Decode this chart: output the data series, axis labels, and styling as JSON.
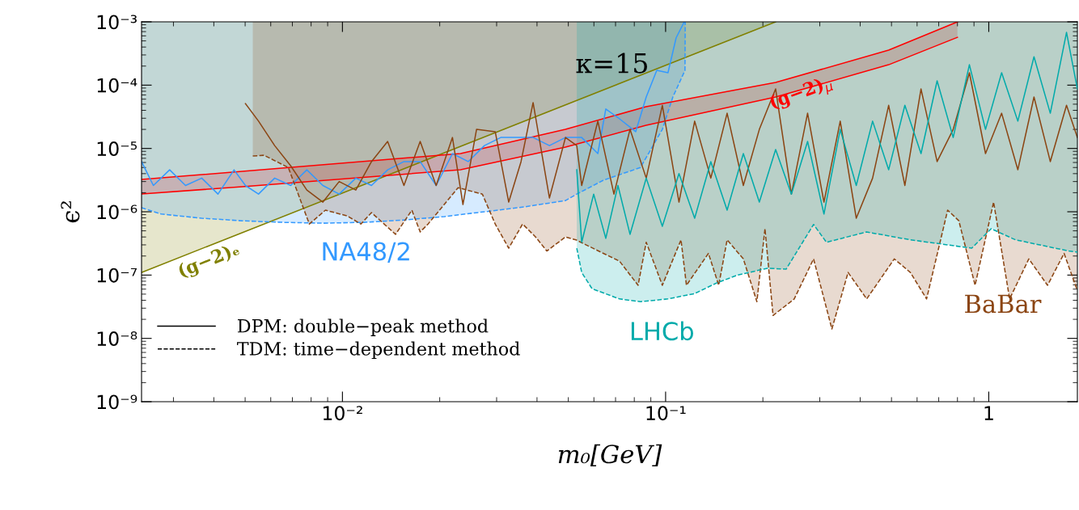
{
  "chart_data": {
    "type": "line",
    "xlabel": "m₀[GeV]",
    "ylabel": "ϵ²",
    "log": "xy",
    "grid": false,
    "legend": "bottom left",
    "xlim": [
      0.00239,
      1.88
    ],
    "ylim": [
      1e-09,
      0.001
    ],
    "xticks": [
      {
        "value": 0.01,
        "label": "10⁻²"
      },
      {
        "value": 0.1,
        "label": "10⁻¹"
      },
      1
    ],
    "yticks": [
      {
        "value": 1e-09,
        "label": "10⁻⁹"
      },
      {
        "value": 1e-08,
        "label": "10⁻⁸"
      },
      {
        "value": 1e-07,
        "label": "10⁻⁷"
      },
      {
        "value": 1e-06,
        "label": "10⁻⁶"
      },
      {
        "value": 1e-05,
        "label": "10⁻⁵"
      },
      {
        "value": 0.0001,
        "label": "10⁻⁴"
      },
      {
        "value": 0.001,
        "label": "10⁻³"
      }
    ],
    "annotations": [
      "κ=15",
      "NA48/2",
      "LHCb",
      "BaBar",
      "(g−2)$_{μ}$",
      "(g−2)ₑ"
    ],
    "series": [
      {
        "color": "#808000",
        "x": [
          0.00239,
          0.219
        ],
        "values": [
          1.1e-07,
          0.001
        ],
        "lower": [
          1.1e-07,
          0.001
        ],
        "upper": [
          0.001,
          0.001
        ]
      },
      {
        "color": "#ff0000",
        "x": [
          0.00239,
          0.0049,
          0.0232,
          0.049,
          0.087,
          0.219,
          0.49,
          0.8
        ],
        "values": [
          3.24e-06,
          4.35e-06,
          8.3e-06,
          2e-05,
          4.57e-05,
          0.00011,
          0.000357,
          0.001
        ],
        "lower": [
          1.91e-06,
          2.49e-06,
          4.6e-06,
          1.05e-05,
          2.32e-05,
          6.5e-05,
          0.00021,
          0.00057
        ],
        "upper": [
          3.24e-06,
          4.35e-06,
          8.3e-06,
          2e-05,
          4.57e-05,
          0.00011,
          0.000357,
          0.001
        ]
      },
      {
        "color": "#ff0000",
        "x": [
          0.00239,
          0.0049,
          0.0232,
          0.049,
          0.087,
          0.219,
          0.49,
          0.8
        ],
        "values": [
          1.91e-06,
          2.49e-06,
          4.6e-06,
          1.05e-05,
          2.32e-05,
          6.5e-05,
          0.00021,
          0.00057
        ]
      },
      {
        "color": "#3399ff",
        "x": [
          0.00239,
          0.0026,
          0.00292,
          0.00327,
          0.00367,
          0.00412,
          0.00462,
          0.00501,
          0.0055,
          0.00617,
          0.00692,
          0.00776,
          0.0087,
          0.00977,
          0.011,
          0.0123,
          0.0138,
          0.0155,
          0.0174,
          0.0195,
          0.0219,
          0.0245,
          0.0275,
          0.0309,
          0.0347,
          0.0389,
          0.0437,
          0.049,
          0.055,
          0.0617,
          0.0653,
          0.072,
          0.0808,
          0.0871,
          0.0939,
          0.1017,
          0.1078,
          0.1142
        ],
        "values": [
          6.2e-06,
          2.6e-06,
          4.6e-06,
          2.6e-06,
          3.4e-06,
          1.9e-06,
          4.6e-06,
          2.6e-06,
          1.9e-06,
          3.4e-06,
          2.6e-06,
          4.6e-06,
          2.6e-06,
          1.9e-06,
          3.4e-06,
          2.6e-06,
          4.6e-06,
          6.2e-06,
          6.2e-06,
          2.6e-06,
          8.3e-06,
          6.2e-06,
          1.11e-05,
          1.49e-05,
          1.49e-05,
          1.49e-05,
          1.11e-05,
          1.49e-05,
          1.49e-05,
          8.3e-06,
          4.2e-05,
          2.94e-05,
          1.84e-05,
          6.5e-05,
          0.000171,
          0.000157,
          0.00056,
          0.001
        ]
      },
      {
        "color": "#3399ff",
        "line_style": "dashed",
        "x": [
          0.00239,
          0.00275,
          0.00367,
          0.0049,
          0.00653,
          0.0087,
          0.0116,
          0.0155,
          0.0207,
          0.0275,
          0.0367,
          0.049,
          0.0531,
          0.0642,
          0.0836,
          0.0977,
          0.1053,
          0.1148,
          0.115
        ],
        "values": [
          1.16e-06,
          9.2e-07,
          7.9e-07,
          7.2e-07,
          6.8e-07,
          6.6e-07,
          6.8e-07,
          7.4e-07,
          8.4e-07,
          1e-06,
          1.2e-06,
          1.5e-06,
          1.9e-06,
          3.15e-06,
          5e-06,
          2e-05,
          6.5e-05,
          0.000171,
          0.001
        ],
        "lower": [
          1.16e-06,
          9.2e-07,
          7.9e-07,
          7.2e-07,
          6.8e-07,
          6.6e-07,
          6.8e-07,
          7.4e-07,
          8.4e-07,
          1e-06,
          1.2e-06,
          1.5e-06,
          1.9e-06,
          3.15e-06,
          5e-06,
          2e-05,
          6.5e-05,
          0.000171,
          0.001
        ],
        "upper": [
          0.001,
          0.001,
          0.001,
          0.001,
          0.001,
          0.001,
          0.001,
          0.001,
          0.001,
          0.001,
          0.001,
          0.001,
          0.001,
          0.001,
          0.001,
          0.001,
          0.001,
          0.001,
          0.001
        ]
      },
      {
        "color": "#8b4513",
        "x": [
          0.00501,
          0.0055,
          0.00617,
          0.00692,
          0.00776,
          0.0087,
          0.00977,
          0.011,
          0.0123,
          0.0138,
          0.0155,
          0.0174,
          0.0195,
          0.0219,
          0.0236,
          0.026,
          0.0297,
          0.0327,
          0.0357,
          0.0389,
          0.0437,
          0.049,
          0.0531,
          0.055,
          0.0617,
          0.0692,
          0.0776,
          0.0871,
          0.0977,
          0.11,
          0.123,
          0.138,
          0.155,
          0.174,
          0.195,
          0.219,
          0.245,
          0.275,
          0.309,
          0.347,
          0.389,
          0.437,
          0.49,
          0.55,
          0.617,
          0.692,
          0.776,
          0.871,
          0.977,
          1.096,
          1.23,
          1.38,
          1.55,
          1.74,
          1.88
        ],
        "values": [
          5.1e-05,
          2.7e-05,
          1.11e-05,
          5.3e-06,
          2.2e-06,
          1.42e-06,
          3e-06,
          2.2e-06,
          6.2e-06,
          1.29e-05,
          2.6e-06,
          1.29e-05,
          2.6e-06,
          1.49e-05,
          1.3e-06,
          2e-05,
          1.84e-05,
          1.42e-06,
          6.2e-06,
          5.3e-05,
          1.65e-06,
          1.49e-05,
          1.11e-05,
          2.6e-06,
          2.7e-05,
          1.9e-06,
          2e-05,
          3.4e-06,
          4.8e-05,
          1.42e-06,
          2.7e-05,
          3.4e-06,
          3.6e-05,
          2.6e-06,
          2e-05,
          8.7e-05,
          1.9e-06,
          3.6e-05,
          1.42e-06,
          2.7e-05,
          7.9e-07,
          3.4e-06,
          4.8e-05,
          2.6e-06,
          8.7e-05,
          6.2e-06,
          2e-05,
          0.000157,
          8.3e-06,
          3.6e-05,
          4.6e-06,
          6.5e-05,
          6.2e-06,
          4.8e-05,
          1.49e-05
        ]
      },
      {
        "color": "#8b4513",
        "line_style": "dashed",
        "x": [
          0.00528,
          0.00572,
          0.0068,
          0.0079,
          0.00886,
          0.01035,
          0.0114,
          0.0123,
          0.0146,
          0.0164,
          0.0174,
          0.0184,
          0.0228,
          0.0271,
          0.0297,
          0.0327,
          0.0361,
          0.0396,
          0.0429,
          0.049,
          0.0528,
          0.0642,
          0.072,
          0.0822,
          0.0871,
          0.0977,
          0.1116,
          0.116,
          0.1357,
          0.146,
          0.155,
          0.174,
          0.1916,
          0.203,
          0.215,
          0.25,
          0.287,
          0.327,
          0.367,
          0.419,
          0.51,
          0.572,
          0.642,
          0.746,
          0.808,
          0.907,
          1.035,
          1.16,
          1.33,
          1.52,
          1.71,
          1.87
        ],
        "values": [
          7.6e-06,
          7.8e-06,
          5e-06,
          6.4e-07,
          1.06e-06,
          8.6e-07,
          6.4e-07,
          9.7e-07,
          4.4e-07,
          1.06e-06,
          4.8e-07,
          6.4e-07,
          2.4e-06,
          1.9e-06,
          6.4e-07,
          2.66e-07,
          6.4e-07,
          4e-07,
          2.4e-07,
          4e-07,
          3.6e-07,
          2.2e-07,
          1.66e-07,
          6.9e-08,
          3.3e-07,
          6.9e-08,
          3.6e-07,
          6.9e-08,
          2.2e-07,
          6.9e-08,
          3.6e-07,
          1.8e-07,
          3.8e-08,
          5.4e-07,
          2.3e-08,
          4.2e-08,
          1.8e-07,
          1.41e-08,
          1.1e-07,
          4.2e-08,
          1.8e-07,
          1.1e-07,
          4.2e-08,
          1.06e-06,
          7.2e-07,
          6.9e-08,
          1.42e-06,
          4.2e-08,
          1.8e-07,
          6.9e-08,
          2.2e-07,
          6.1e-08
        ],
        "lower": [
          7.6e-06,
          7.8e-06,
          5e-06,
          6.4e-07,
          1.06e-06,
          8.6e-07,
          6.4e-07,
          9.7e-07,
          4.4e-07,
          1.06e-06,
          4.8e-07,
          6.4e-07,
          2.4e-06,
          1.9e-06,
          6.4e-07,
          2.66e-07,
          6.4e-07,
          4e-07,
          2.4e-07,
          4e-07,
          3.6e-07,
          2.2e-07,
          1.66e-07,
          6.9e-08,
          3.3e-07,
          6.9e-08,
          3.6e-07,
          6.9e-08,
          2.2e-07,
          6.9e-08,
          3.6e-07,
          1.8e-07,
          3.8e-08,
          5.4e-07,
          2.3e-08,
          4.2e-08,
          1.8e-07,
          1.41e-08,
          1.1e-07,
          4.2e-08,
          1.8e-07,
          1.1e-07,
          4.2e-08,
          1.06e-06,
          7.2e-07,
          6.9e-08,
          1.42e-06,
          4.2e-08,
          1.8e-07,
          6.9e-08,
          2.2e-07,
          6.1e-08
        ],
        "upper": [
          0.001,
          0.001,
          0.001,
          0.001,
          0.001,
          0.001,
          0.001,
          0.001,
          0.001,
          0.001,
          0.001,
          0.001,
          0.001,
          0.001,
          0.001,
          0.001,
          0.001,
          0.001,
          0.001,
          0.001,
          0.001,
          0.001,
          0.001,
          0.001,
          0.001,
          0.001,
          0.001,
          0.001,
          0.001,
          0.001,
          0.001,
          0.001,
          0.001,
          0.001,
          0.001,
          0.001,
          0.001,
          0.001,
          0.001,
          0.001,
          0.001,
          0.001,
          0.001,
          0.001,
          0.001,
          0.001,
          0.001,
          0.001,
          0.001,
          0.001,
          0.001,
          0.001
        ]
      },
      {
        "color": "#00aaaa",
        "x": [
          0.0531,
          0.055,
          0.0599,
          0.0653,
          0.0712,
          0.0776,
          0.0871,
          0.0977,
          0.11,
          0.123,
          0.138,
          0.155,
          0.174,
          0.195,
          0.219,
          0.245,
          0.275,
          0.309,
          0.347,
          0.389,
          0.437,
          0.49,
          0.55,
          0.617,
          0.692,
          0.776,
          0.871,
          0.977,
          1.096,
          1.23,
          1.38,
          1.55,
          1.74,
          1.88
        ],
        "values": [
          4.6e-06,
          3.3e-07,
          1.9e-06,
          3.8e-07,
          2.6e-06,
          4.4e-07,
          3.4e-06,
          5.9e-07,
          4e-06,
          7.9e-07,
          6.2e-06,
          1.06e-06,
          8.3e-06,
          1.42e-06,
          9.6e-06,
          1.9e-06,
          1.29e-05,
          9.2e-07,
          2e-05,
          2.6e-06,
          2.7e-05,
          4.6e-06,
          4.8e-05,
          8.3e-06,
          0.000117,
          1.49e-05,
          0.00021,
          2e-05,
          0.000157,
          2.7e-05,
          0.00028,
          3.6e-05,
          0.00068,
          8.7e-05
        ]
      },
      {
        "color": "#00aaaa",
        "line_style": "dashed",
        "x": [
          0.0531,
          0.055,
          0.0592,
          0.072,
          0.0836,
          0.1017,
          0.123,
          0.1438,
          0.167,
          0.2065,
          0.236,
          0.287,
          0.3145,
          0.419,
          0.572,
          0.746,
          0.886,
          1.017,
          1.21,
          1.77,
          1.88
        ],
        "values": [
          2.66e-07,
          1.1e-07,
          6.1e-08,
          4.2e-08,
          3.8e-08,
          4.2e-08,
          5.1e-08,
          7.5e-08,
          1e-07,
          1.28e-07,
          1.24e-07,
          6.3e-07,
          3.3e-07,
          4.8e-07,
          3.6e-07,
          3e-07,
          2.66e-07,
          5.4e-07,
          3.6e-07,
          2.4e-07,
          2.3e-07
        ],
        "lower": [
          2.66e-07,
          1.1e-07,
          6.1e-08,
          4.2e-08,
          3.8e-08,
          4.2e-08,
          5.1e-08,
          7.5e-08,
          1e-07,
          1.28e-07,
          1.24e-07,
          6.3e-07,
          3.3e-07,
          4.8e-07,
          3.6e-07,
          3e-07,
          2.66e-07,
          5.4e-07,
          3.6e-07,
          2.4e-07,
          2.3e-07
        ],
        "upper": [
          0.001,
          0.001,
          0.001,
          0.001,
          0.001,
          0.001,
          0.001,
          0.001,
          0.001,
          0.001,
          0.001,
          0.001,
          0.001,
          0.001,
          0.001,
          0.001,
          0.001,
          0.001,
          0.001,
          0.001,
          0.001
        ]
      },
      {
        "name": "DPM: double−peak method",
        "color": "#000000",
        "line_style": "solid"
      },
      {
        "name": "TDM: time−dependent method",
        "color": "#000000",
        "line_style": "dashed"
      }
    ]
  }
}
